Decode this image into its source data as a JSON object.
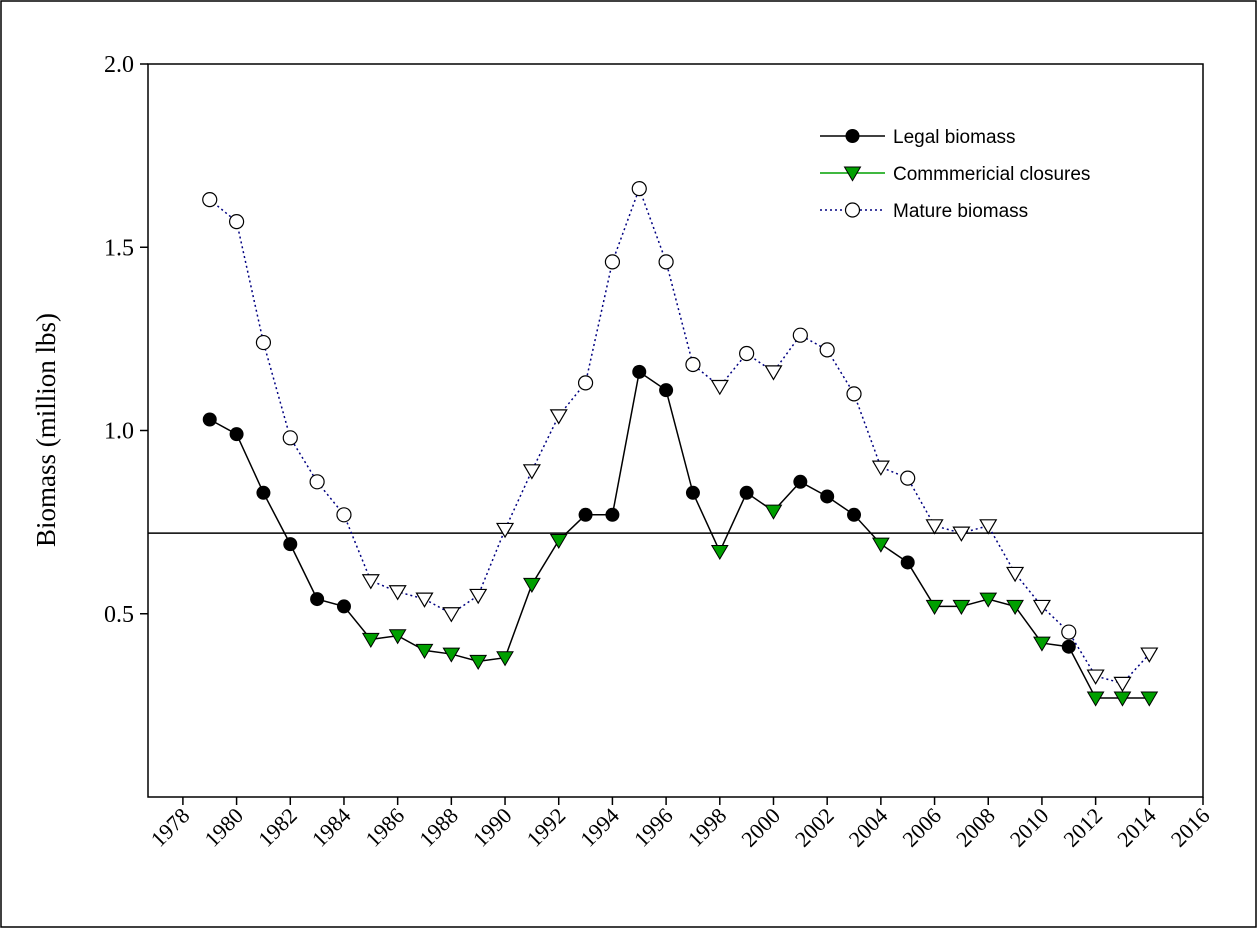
{
  "chart_data": {
    "type": "line",
    "y_label": "Biomass (million lbs)",
    "x": [
      1979,
      1980,
      1981,
      1982,
      1983,
      1984,
      1985,
      1986,
      1987,
      1988,
      1989,
      1990,
      1991,
      1992,
      1993,
      1994,
      1995,
      1996,
      1997,
      1998,
      1999,
      2000,
      2001,
      2002,
      2003,
      2004,
      2005,
      2006,
      2007,
      2008,
      2009,
      2010,
      2011,
      2012,
      2013,
      2014
    ],
    "series": [
      {
        "name": "Legal biomass",
        "color": "#000000",
        "values": [
          1.03,
          0.99,
          0.83,
          0.69,
          0.54,
          0.52,
          0.43,
          0.44,
          0.4,
          0.39,
          0.37,
          0.38,
          0.58,
          0.7,
          0.77,
          0.77,
          1.16,
          1.11,
          0.83,
          0.67,
          0.83,
          0.78,
          0.86,
          0.82,
          0.77,
          0.69,
          0.64,
          0.52,
          0.52,
          0.54,
          0.52,
          0.42,
          0.41,
          0.27,
          0.27,
          0.27
        ]
      },
      {
        "name": "Commmericial closures",
        "color": "#00a000",
        "values": [
          null,
          null,
          null,
          null,
          null,
          null,
          0.43,
          0.44,
          0.4,
          0.39,
          0.37,
          0.38,
          0.58,
          0.7,
          null,
          null,
          null,
          null,
          null,
          0.67,
          null,
          0.78,
          null,
          null,
          null,
          0.69,
          null,
          0.52,
          0.52,
          0.54,
          0.52,
          0.42,
          null,
          0.27,
          0.27,
          0.27
        ]
      },
      {
        "name": "Mature biomass",
        "color": "#000080",
        "values": [
          1.63,
          1.57,
          1.24,
          0.98,
          0.86,
          0.77,
          0.59,
          0.56,
          0.54,
          0.5,
          0.55,
          0.73,
          0.89,
          1.04,
          1.13,
          1.46,
          1.66,
          1.46,
          1.18,
          1.12,
          1.21,
          1.16,
          1.26,
          1.22,
          1.1,
          0.9,
          0.87,
          0.74,
          0.72,
          0.74,
          0.61,
          0.52,
          0.45,
          0.33,
          0.31,
          0.39
        ]
      }
    ],
    "reference_line": 0.72,
    "xlim": [
      1976.7,
      2016
    ],
    "xticks": [
      1978,
      1980,
      1982,
      1984,
      1986,
      1988,
      1990,
      1992,
      1994,
      1996,
      1998,
      2000,
      2002,
      2004,
      2006,
      2008,
      2010,
      2012,
      2014,
      2016
    ],
    "ylim": [
      0,
      2
    ],
    "yticks": [
      0.5,
      {
        "value": 1,
        "label": "1.0"
      },
      1.5,
      {
        "value": 2,
        "label": "2.0"
      }
    ]
  }
}
